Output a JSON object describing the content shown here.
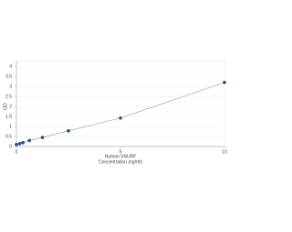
{
  "chart_data": {
    "type": "scatter",
    "x_label_lines": [
      "Human SNURF",
      "Concentration (ng/ml)"
    ],
    "y_label": "OD",
    "series": [
      {
        "color": "#1f4e8c",
        "x": [
          0,
          0.156,
          0.312,
          0.625,
          1.25,
          2.5,
          5,
          10
        ],
        "values": [
          0.1,
          0.14,
          0.19,
          0.3,
          0.45,
          0.78,
          1.42,
          3.2
        ]
      }
    ],
    "line_color": "#8a93b8",
    "xlim": [
      0,
      10
    ],
    "xticks": [
      0,
      5,
      10
    ],
    "ylim": [
      0,
      4
    ],
    "yticks": [
      0,
      0.5,
      1,
      1.5,
      2,
      2.5,
      3,
      3.5,
      4
    ],
    "grid": true
  }
}
